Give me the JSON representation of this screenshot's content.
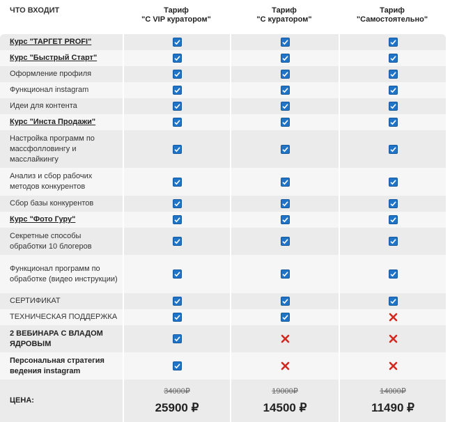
{
  "header": {
    "feature_title": "ЧТО ВХОДИТ",
    "plans": [
      {
        "line1": "Тариф",
        "line2": "\"С VIP куратором\""
      },
      {
        "line1": "Тариф",
        "line2": "\"С куратором\""
      },
      {
        "line1": "Тариф",
        "line2": "\"Самостоятельно\""
      }
    ]
  },
  "rows": [
    {
      "label": "Курс \"ТАРГЕТ PROFI\"",
      "style": "link",
      "included": [
        true,
        true,
        true
      ]
    },
    {
      "label": "Курс \"Быстрый Старт\"",
      "style": "link",
      "included": [
        true,
        true,
        true
      ]
    },
    {
      "label": "Оформление профиля",
      "style": "plain",
      "included": [
        true,
        true,
        true
      ]
    },
    {
      "label": "Функционал instagram",
      "style": "plain",
      "included": [
        true,
        true,
        true
      ]
    },
    {
      "label": "Идеи для контента",
      "style": "plain",
      "included": [
        true,
        true,
        true
      ]
    },
    {
      "label": "Курс \"Инста Продажи\"",
      "style": "link",
      "included": [
        true,
        true,
        true
      ]
    },
    {
      "label": "Настройка программ по массфолловингу и масслайкингу",
      "style": "plain",
      "included": [
        true,
        true,
        true
      ]
    },
    {
      "label": "Анализ и сбор рабочих методов конкурентов",
      "style": "plain",
      "included": [
        true,
        true,
        true
      ]
    },
    {
      "label": "Сбор базы конкурентов",
      "style": "plain",
      "included": [
        true,
        true,
        true
      ]
    },
    {
      "label": "Курс \"Фото Гуру\"",
      "style": "link",
      "included": [
        true,
        true,
        true
      ]
    },
    {
      "label": "Секретные способы обработки 10 блогеров",
      "style": "plain",
      "included": [
        true,
        true,
        true
      ]
    },
    {
      "label": "Функционал программ по обработке (видео инструкции)",
      "style": "plain",
      "included": [
        true,
        true,
        true
      ]
    },
    {
      "label": "СЕРТИФИКАТ",
      "style": "plain",
      "included": [
        true,
        true,
        true
      ]
    },
    {
      "label": "ТЕХНИЧЕСКАЯ ПОДДЕРЖКА",
      "style": "plain",
      "included": [
        true,
        true,
        false
      ]
    },
    {
      "label": "2 ВЕБИНАРА С ВЛАДОМ ЯДРОВЫМ",
      "style": "bold",
      "included": [
        true,
        false,
        false
      ]
    },
    {
      "label": "Персональная стратегия ведения instagram",
      "style": "bold",
      "included": [
        true,
        false,
        false
      ]
    }
  ],
  "price": {
    "label": "ЦЕНА:",
    "old": [
      "34000₽",
      "19000₽",
      "14000₽"
    ],
    "new": [
      "25900 ₽",
      "14500 ₽",
      "11490 ₽"
    ]
  }
}
